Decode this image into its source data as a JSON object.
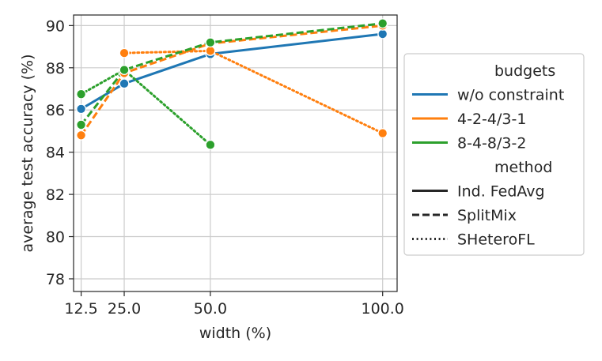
{
  "chart_data": {
    "type": "line",
    "xlabel": "width (%)",
    "ylabel": "average test accuracy (%)",
    "x_ticks": [
      12.5,
      25.0,
      50.0,
      100.0
    ],
    "x_tick_labels": [
      "12.5",
      "25.0",
      "50.0",
      "100.0"
    ],
    "y_ticks": [
      78,
      80,
      82,
      84,
      86,
      88,
      90
    ],
    "y_tick_labels": [
      "78",
      "80",
      "82",
      "84",
      "86",
      "88",
      "90"
    ],
    "xlim": [
      10.3,
      104.2
    ],
    "ylim": [
      77.4,
      90.5
    ],
    "grid": true,
    "legend_placement": "outside-right",
    "legend": {
      "budgets_title": "budgets",
      "method_title": "method",
      "budgets": [
        {
          "label": "w/o constraint",
          "color": "#1f77b4"
        },
        {
          "label": "4-2-4/3-1",
          "color": "#ff7f0e"
        },
        {
          "label": "8-4-8/3-2",
          "color": "#2ca02c"
        }
      ],
      "methods": [
        {
          "label": "Ind. FedAvg",
          "dash": "solid"
        },
        {
          "label": "SplitMix",
          "dash": "dashed"
        },
        {
          "label": "SHeteroFL",
          "dash": "dotted"
        }
      ]
    },
    "series": [
      {
        "budget": "w/o constraint",
        "method": "Ind. FedAvg",
        "color": "#1f77b4",
        "dash": "solid",
        "x": [
          12.5,
          25.0,
          50.0,
          100.0
        ],
        "y": [
          86.05,
          87.25,
          88.65,
          89.6
        ]
      },
      {
        "budget": "4-2-4/3-1",
        "method": "SplitMix",
        "color": "#ff7f0e",
        "dash": "dashed",
        "x": [
          12.5,
          25.0,
          50.0,
          100.0
        ],
        "y": [
          84.8,
          87.75,
          89.15,
          90.0
        ]
      },
      {
        "budget": "4-2-4/3-1",
        "method": "SHeteroFL",
        "color": "#ff7f0e",
        "dash": "dotted",
        "x": [
          25.0,
          50.0,
          100.0
        ],
        "y": [
          88.7,
          88.8,
          84.9
        ]
      },
      {
        "budget": "8-4-8/3-2",
        "method": "SplitMix",
        "color": "#2ca02c",
        "dash": "dashed",
        "x": [
          12.5,
          25.0,
          50.0,
          100.0
        ],
        "y": [
          85.3,
          87.9,
          89.2,
          90.1
        ]
      },
      {
        "budget": "8-4-8/3-2",
        "method": "SHeteroFL",
        "color": "#2ca02c",
        "dash": "dotted",
        "x": [
          12.5,
          25.0,
          50.0
        ],
        "y": [
          86.75,
          87.9,
          84.35
        ]
      }
    ]
  }
}
